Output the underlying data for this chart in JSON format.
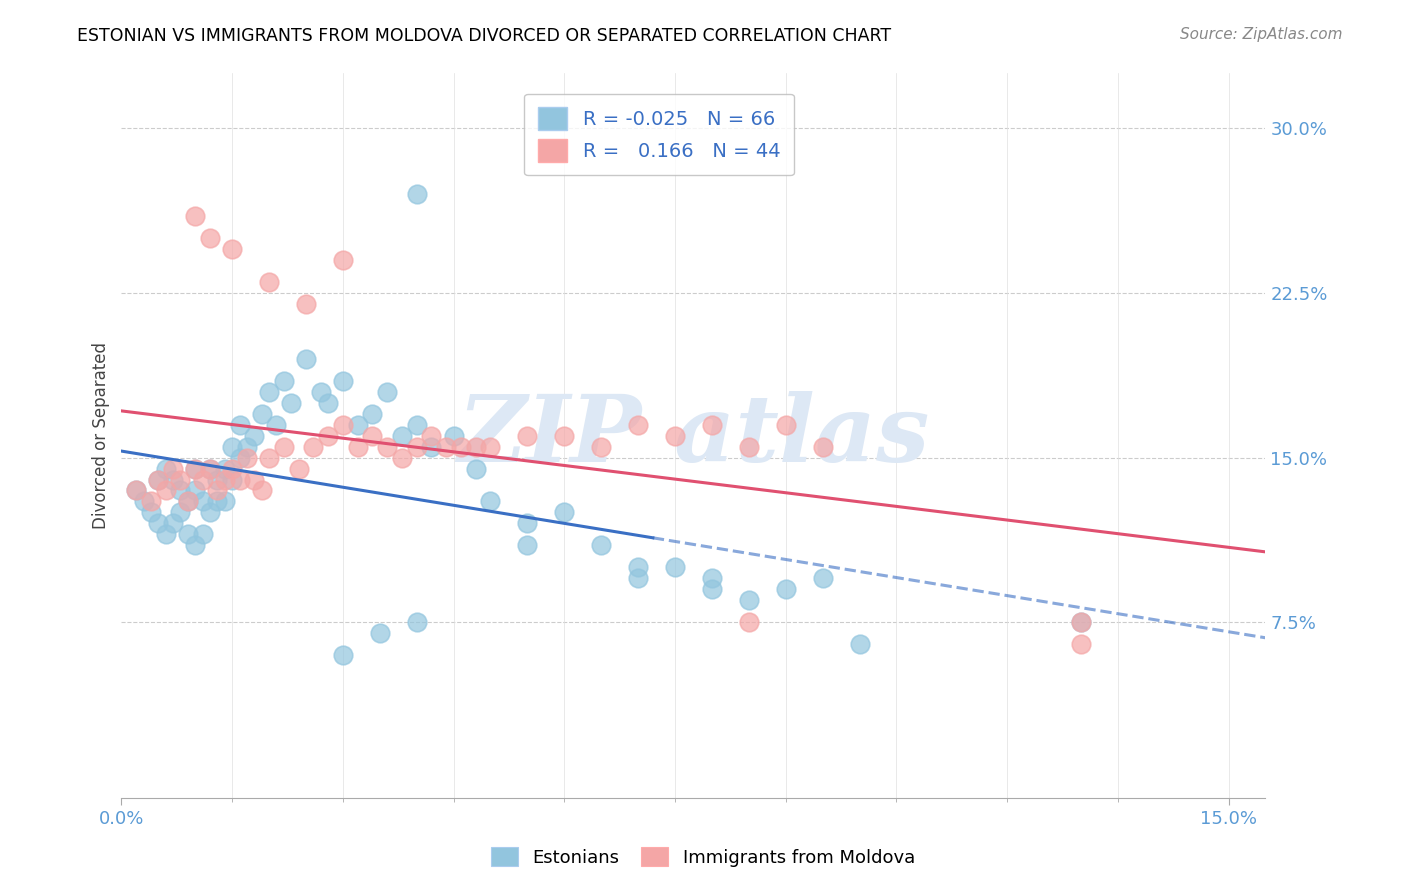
{
  "title": "ESTONIAN VS IMMIGRANTS FROM MOLDOVA DIVORCED OR SEPARATED CORRELATION CHART",
  "source": "Source: ZipAtlas.com",
  "ylabel": "Divorced or Separated",
  "xlim": [
    0.0,
    0.155
  ],
  "ylim": [
    -0.005,
    0.325
  ],
  "ytick_values": [
    0.075,
    0.15,
    0.225,
    0.3
  ],
  "ytick_labels": [
    "7.5%",
    "15.0%",
    "22.5%",
    "30.0%"
  ],
  "xtick_values": [
    0.0,
    0.15
  ],
  "xtick_labels": [
    "0.0%",
    "15.0%"
  ],
  "legend_r1": "R = -0.025   N = 66",
  "legend_r2": "R =   0.166   N = 44",
  "color_estonian": "#92c5de",
  "color_moldova": "#f4a6a6",
  "color_line_estonian": "#3a6fc4",
  "color_line_moldova": "#e05070",
  "axis_label_color": "#5b9bd5",
  "watermark_color": "#dde8f5",
  "est_x": [
    0.002,
    0.003,
    0.004,
    0.005,
    0.005,
    0.006,
    0.006,
    0.007,
    0.007,
    0.008,
    0.008,
    0.009,
    0.009,
    0.01,
    0.01,
    0.01,
    0.011,
    0.011,
    0.012,
    0.012,
    0.013,
    0.013,
    0.014,
    0.014,
    0.015,
    0.015,
    0.016,
    0.016,
    0.017,
    0.018,
    0.019,
    0.02,
    0.021,
    0.022,
    0.023,
    0.025,
    0.027,
    0.028,
    0.03,
    0.032,
    0.034,
    0.036,
    0.038,
    0.04,
    0.042,
    0.045,
    0.048,
    0.05,
    0.055,
    0.06,
    0.065,
    0.07,
    0.075,
    0.08,
    0.085,
    0.09,
    0.095,
    0.1,
    0.055,
    0.07,
    0.08,
    0.04,
    0.13,
    0.04,
    0.035,
    0.03
  ],
  "est_y": [
    0.135,
    0.13,
    0.125,
    0.14,
    0.12,
    0.145,
    0.115,
    0.14,
    0.12,
    0.135,
    0.125,
    0.13,
    0.115,
    0.145,
    0.135,
    0.11,
    0.13,
    0.115,
    0.145,
    0.125,
    0.14,
    0.13,
    0.145,
    0.13,
    0.155,
    0.14,
    0.165,
    0.15,
    0.155,
    0.16,
    0.17,
    0.18,
    0.165,
    0.185,
    0.175,
    0.195,
    0.18,
    0.175,
    0.185,
    0.165,
    0.17,
    0.18,
    0.16,
    0.165,
    0.155,
    0.16,
    0.145,
    0.13,
    0.12,
    0.125,
    0.11,
    0.095,
    0.1,
    0.095,
    0.085,
    0.09,
    0.095,
    0.065,
    0.11,
    0.1,
    0.09,
    0.27,
    0.075,
    0.075,
    0.07,
    0.06
  ],
  "mol_x": [
    0.002,
    0.004,
    0.005,
    0.006,
    0.007,
    0.008,
    0.009,
    0.01,
    0.011,
    0.012,
    0.013,
    0.014,
    0.015,
    0.016,
    0.017,
    0.018,
    0.019,
    0.02,
    0.022,
    0.024,
    0.026,
    0.028,
    0.03,
    0.032,
    0.034,
    0.036,
    0.038,
    0.04,
    0.042,
    0.044,
    0.046,
    0.048,
    0.05,
    0.055,
    0.06,
    0.065,
    0.07,
    0.075,
    0.08,
    0.085,
    0.09,
    0.095,
    0.13,
    0.13
  ],
  "mol_y": [
    0.135,
    0.13,
    0.14,
    0.135,
    0.145,
    0.14,
    0.13,
    0.145,
    0.14,
    0.145,
    0.135,
    0.14,
    0.145,
    0.14,
    0.15,
    0.14,
    0.135,
    0.15,
    0.155,
    0.145,
    0.155,
    0.16,
    0.165,
    0.155,
    0.16,
    0.155,
    0.15,
    0.155,
    0.16,
    0.155,
    0.155,
    0.155,
    0.155,
    0.16,
    0.16,
    0.155,
    0.165,
    0.16,
    0.165,
    0.155,
    0.165,
    0.155,
    0.075,
    0.065
  ],
  "mol_extra_x": [
    0.01,
    0.012,
    0.015,
    0.02,
    0.025,
    0.03,
    0.085
  ],
  "mol_extra_y": [
    0.26,
    0.25,
    0.245,
    0.23,
    0.22,
    0.24,
    0.075
  ]
}
